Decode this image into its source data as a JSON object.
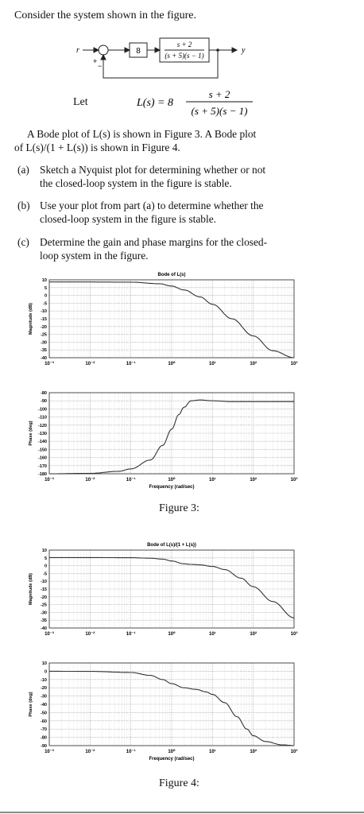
{
  "intro": "Consider the system shown in the figure.",
  "block_diagram": {
    "input_label": "r",
    "output_label": "y",
    "sum_plus": "+",
    "sum_minus": "−",
    "gain": "8",
    "tf_num": "s + 2",
    "tf_den": "(s + 5)(s − 1)"
  },
  "let": {
    "word": "Let",
    "lhs": "L(s) = 8",
    "num": "s + 2",
    "den": "(s + 5)(s − 1)"
  },
  "paragraph": {
    "line1": "A Bode plot of L(s) is shown in Figure 3. A Bode plot",
    "line2": "of L(s)/(1 + L(s)) is shown in Figure 4."
  },
  "parts": [
    {
      "label": "(a)",
      "line1": "Sketch a Nyquist plot for determining whether or not",
      "line2": "the closed-loop system in the figure is stable."
    },
    {
      "label": "(b)",
      "line1": "Use your plot from part (a) to determine whether the",
      "line2": "closed-loop system in the figure is stable."
    },
    {
      "label": "(c)",
      "line1": "Determine the gain and phase margins for the closed-",
      "line2": "loop system in the figure."
    }
  ],
  "figures": [
    {
      "caption": "Figure 3:"
    },
    {
      "caption": "Figure 4:"
    }
  ],
  "chart_data": [
    {
      "type": "line",
      "title": "Bode of L(s)",
      "xlabel": "",
      "ylabel": "Magnitude (dB)",
      "xscale": "log",
      "xlim": [
        0.001,
        1000
      ],
      "ylim": [
        -40,
        10
      ],
      "x_tick_labels": [
        "10⁻³",
        "10⁻²",
        "10⁻¹",
        "10⁰",
        "10¹",
        "10²",
        "10³"
      ],
      "y_tick_labels": [
        "10",
        "5",
        "0",
        "-5",
        "-10",
        "-15",
        "-20",
        "-25",
        "-30",
        "-35",
        "-40"
      ],
      "grid": true,
      "series": [
        {
          "x": [
            0.001,
            0.01,
            0.1,
            0.5,
            1,
            2,
            5,
            10,
            30,
            100,
            300,
            1000
          ],
          "y": [
            8.6,
            8.6,
            8.5,
            7.5,
            6,
            3.5,
            -1,
            -5.7,
            -15,
            -26,
            -35.5,
            -40
          ]
        }
      ]
    },
    {
      "type": "line",
      "title": "",
      "xlabel": "Frequency (rad/sec)",
      "ylabel": "Phase (deg)",
      "xscale": "log",
      "xlim": [
        0.001,
        1000
      ],
      "ylim": [
        -180,
        -80
      ],
      "x_tick_labels": [
        "10⁻³",
        "10⁻²",
        "10⁻¹",
        "10⁰",
        "10¹",
        "10²",
        "10³"
      ],
      "y_tick_labels": [
        "-80",
        "-90",
        "-100",
        "-110",
        "-120",
        "-130",
        "-140",
        "-150",
        "-160",
        "-170",
        "-180"
      ],
      "grid": true,
      "series": [
        {
          "x": [
            0.001,
            0.01,
            0.05,
            0.1,
            0.3,
            0.6,
            1,
            1.5,
            2,
            3,
            5,
            10,
            30,
            100,
            1000
          ],
          "y": [
            -180,
            -179.5,
            -177,
            -174,
            -163,
            -145,
            -125,
            -107,
            -98,
            -90,
            -89,
            -90,
            -91,
            -91,
            -91
          ]
        }
      ]
    },
    {
      "type": "line",
      "title": "Bode of L(s)/(1 + L(s))",
      "xlabel": "",
      "ylabel": "Magnitude (dB)",
      "xscale": "log",
      "xlim": [
        0.001,
        1000
      ],
      "ylim": [
        -40,
        10
      ],
      "x_tick_labels": [
        "10⁻³",
        "10⁻²",
        "10⁻¹",
        "10⁰",
        "10¹",
        "10²",
        "10³"
      ],
      "y_tick_labels": [
        "10",
        "5",
        "0",
        "-5",
        "-10",
        "-15",
        "-20",
        "-25",
        "-30",
        "-35",
        "-40"
      ],
      "grid": true,
      "series": [
        {
          "x": [
            0.001,
            0.01,
            0.1,
            0.3,
            0.6,
            1,
            2,
            3,
            5,
            10,
            20,
            50,
            100,
            300,
            1000
          ],
          "y": [
            5.2,
            5.2,
            5.1,
            4.8,
            4.2,
            3,
            1.2,
            0.8,
            0.5,
            -0.5,
            -2.5,
            -8,
            -13.5,
            -23,
            -33.5
          ]
        }
      ]
    },
    {
      "type": "line",
      "title": "",
      "xlabel": "Frequency (rad/sec)",
      "ylabel": "Phase (deg)",
      "xscale": "log",
      "xlim": [
        0.001,
        1000
      ],
      "ylim": [
        -90,
        10
      ],
      "x_tick_labels": [
        "10⁻³",
        "10⁻²",
        "10⁻¹",
        "10⁰",
        "10¹",
        "10²",
        "10³"
      ],
      "y_tick_labels": [
        "10",
        "0",
        "-10",
        "-20",
        "-30",
        "-40",
        "-50",
        "-60",
        "-70",
        "-80",
        "-90"
      ],
      "grid": true,
      "series": [
        {
          "x": [
            0.001,
            0.01,
            0.1,
            0.3,
            0.6,
            1,
            2,
            4,
            7,
            10,
            20,
            40,
            70,
            100,
            200,
            500,
            1000
          ],
          "y": [
            0,
            -0.2,
            -1.5,
            -5,
            -10,
            -15,
            -20,
            -22,
            -25,
            -28,
            -38,
            -55,
            -70,
            -78,
            -85,
            -89,
            -90
          ]
        }
      ]
    }
  ]
}
